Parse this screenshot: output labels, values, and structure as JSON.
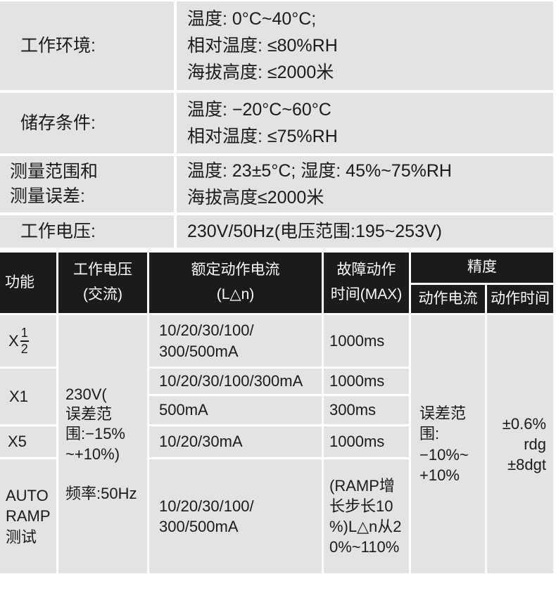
{
  "colors": {
    "page_bg": "#ffffff",
    "cell_bg": "#e3e3e3",
    "header_bg": "#1b1b1b",
    "text_dark": "#1a1a1a",
    "text_light": "#ffffff"
  },
  "spec_table": {
    "rows": [
      {
        "label": "工作环境:",
        "value": "温度: 0°C~40°C;\n相对温度: ≤80%RH\n海拔高度: ≤2000米"
      },
      {
        "label": "储存条件:",
        "value": "温度: −20°C~60°C\n相对温度: ≤75%RH"
      },
      {
        "label": "测量范围和\n测量误差:",
        "value": "温度: 23±5°C; 湿度: 45%~75%RH\n海拔高度≤2000米"
      },
      {
        "label": "工作电压:",
        "value": "230V/50Hz(电压范围:195~253V)"
      }
    ]
  },
  "rcd_table": {
    "headers": {
      "function": "功能",
      "working_voltage": "工作电压\n(交流)",
      "rated_current": "额定动作电流\n(L△n)",
      "fault_time": "故障动作\n时间(MAX)",
      "accuracy": "精度",
      "accuracy_current": "动作电流",
      "accuracy_time": "动作时间"
    },
    "function_cells": {
      "half_prefix": "X",
      "half_numerator": "1",
      "half_denominator": "2",
      "x1": "X1",
      "x5": "X5",
      "auto_ramp": "AUTO\nRAMP\n测试"
    },
    "working_voltage_cell": "230V(\n误差范\n围:−15%\n~+10%)\n\n频率:50Hz",
    "rated_current_cells": [
      "10/20/30/100/\n300/500mA",
      "10/20/30/100/300mA",
      "500mA",
      "10/20/30mA",
      "10/20/30/100/\n300/500mA"
    ],
    "fault_time_cells": [
      "1000ms",
      "1000ms",
      "300ms",
      "1000ms",
      "(RAMP增\n长步长10\n%)L△n从2\n0%~110%"
    ],
    "accuracy_current_cell": "误差范围:\n−10%~\n+10%",
    "accuracy_time_cell": "±0.6%\nrdg\n±8dgt"
  }
}
